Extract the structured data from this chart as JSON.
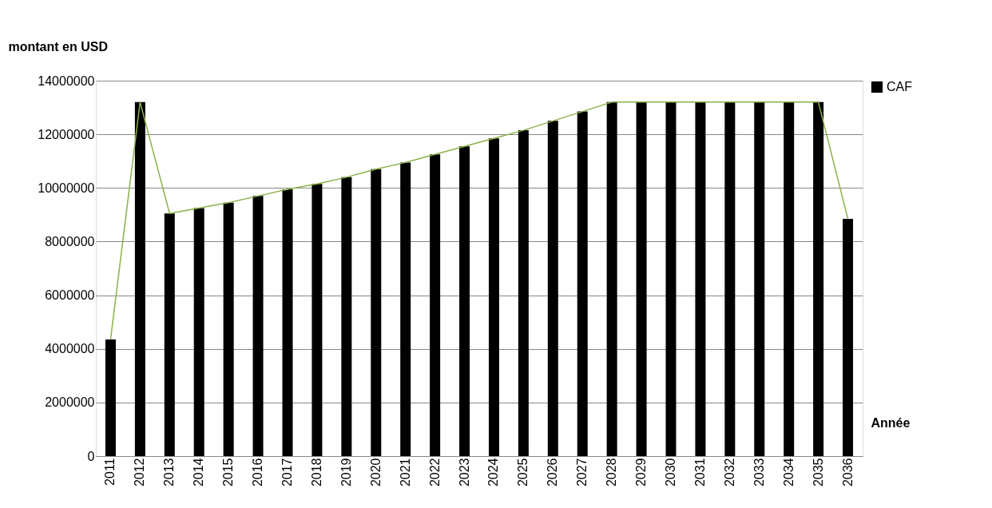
{
  "chart_data": {
    "type": "bar",
    "ylabel": "montant en USD",
    "xlabel": "Année",
    "categories": [
      "2011",
      "2012",
      "2013",
      "2014",
      "2015",
      "2016",
      "2017",
      "2018",
      "2019",
      "2020",
      "2021",
      "2022",
      "2023",
      "2024",
      "2025",
      "2026",
      "2027",
      "2028",
      "2029",
      "2030",
      "2031",
      "2032",
      "2033",
      "2034",
      "2035",
      "2036"
    ],
    "series": [
      {
        "name": "CAF",
        "color": "#000000",
        "values": [
          4350000,
          13200000,
          9050000,
          9250000,
          9450000,
          9700000,
          9950000,
          10150000,
          10400000,
          10700000,
          10950000,
          11250000,
          11550000,
          11850000,
          12150000,
          12500000,
          12850000,
          13200000,
          13200000,
          13200000,
          13200000,
          13200000,
          13200000,
          13200000,
          13200000,
          8850000
        ]
      },
      {
        "type": "line",
        "color": "#8db04a",
        "values": [
          4350000,
          13200000,
          9050000,
          9250000,
          9450000,
          9700000,
          9950000,
          10150000,
          10400000,
          10700000,
          10950000,
          11250000,
          11550000,
          11850000,
          12150000,
          12500000,
          12850000,
          13200000,
          13200000,
          13200000,
          13200000,
          13200000,
          13200000,
          13200000,
          13200000,
          8850000
        ]
      }
    ],
    "ylim": [
      0,
      14000000
    ],
    "yticks": [
      0,
      2000000,
      4000000,
      6000000,
      8000000,
      10000000,
      12000000,
      14000000
    ],
    "grid": "y",
    "legend": "right"
  }
}
